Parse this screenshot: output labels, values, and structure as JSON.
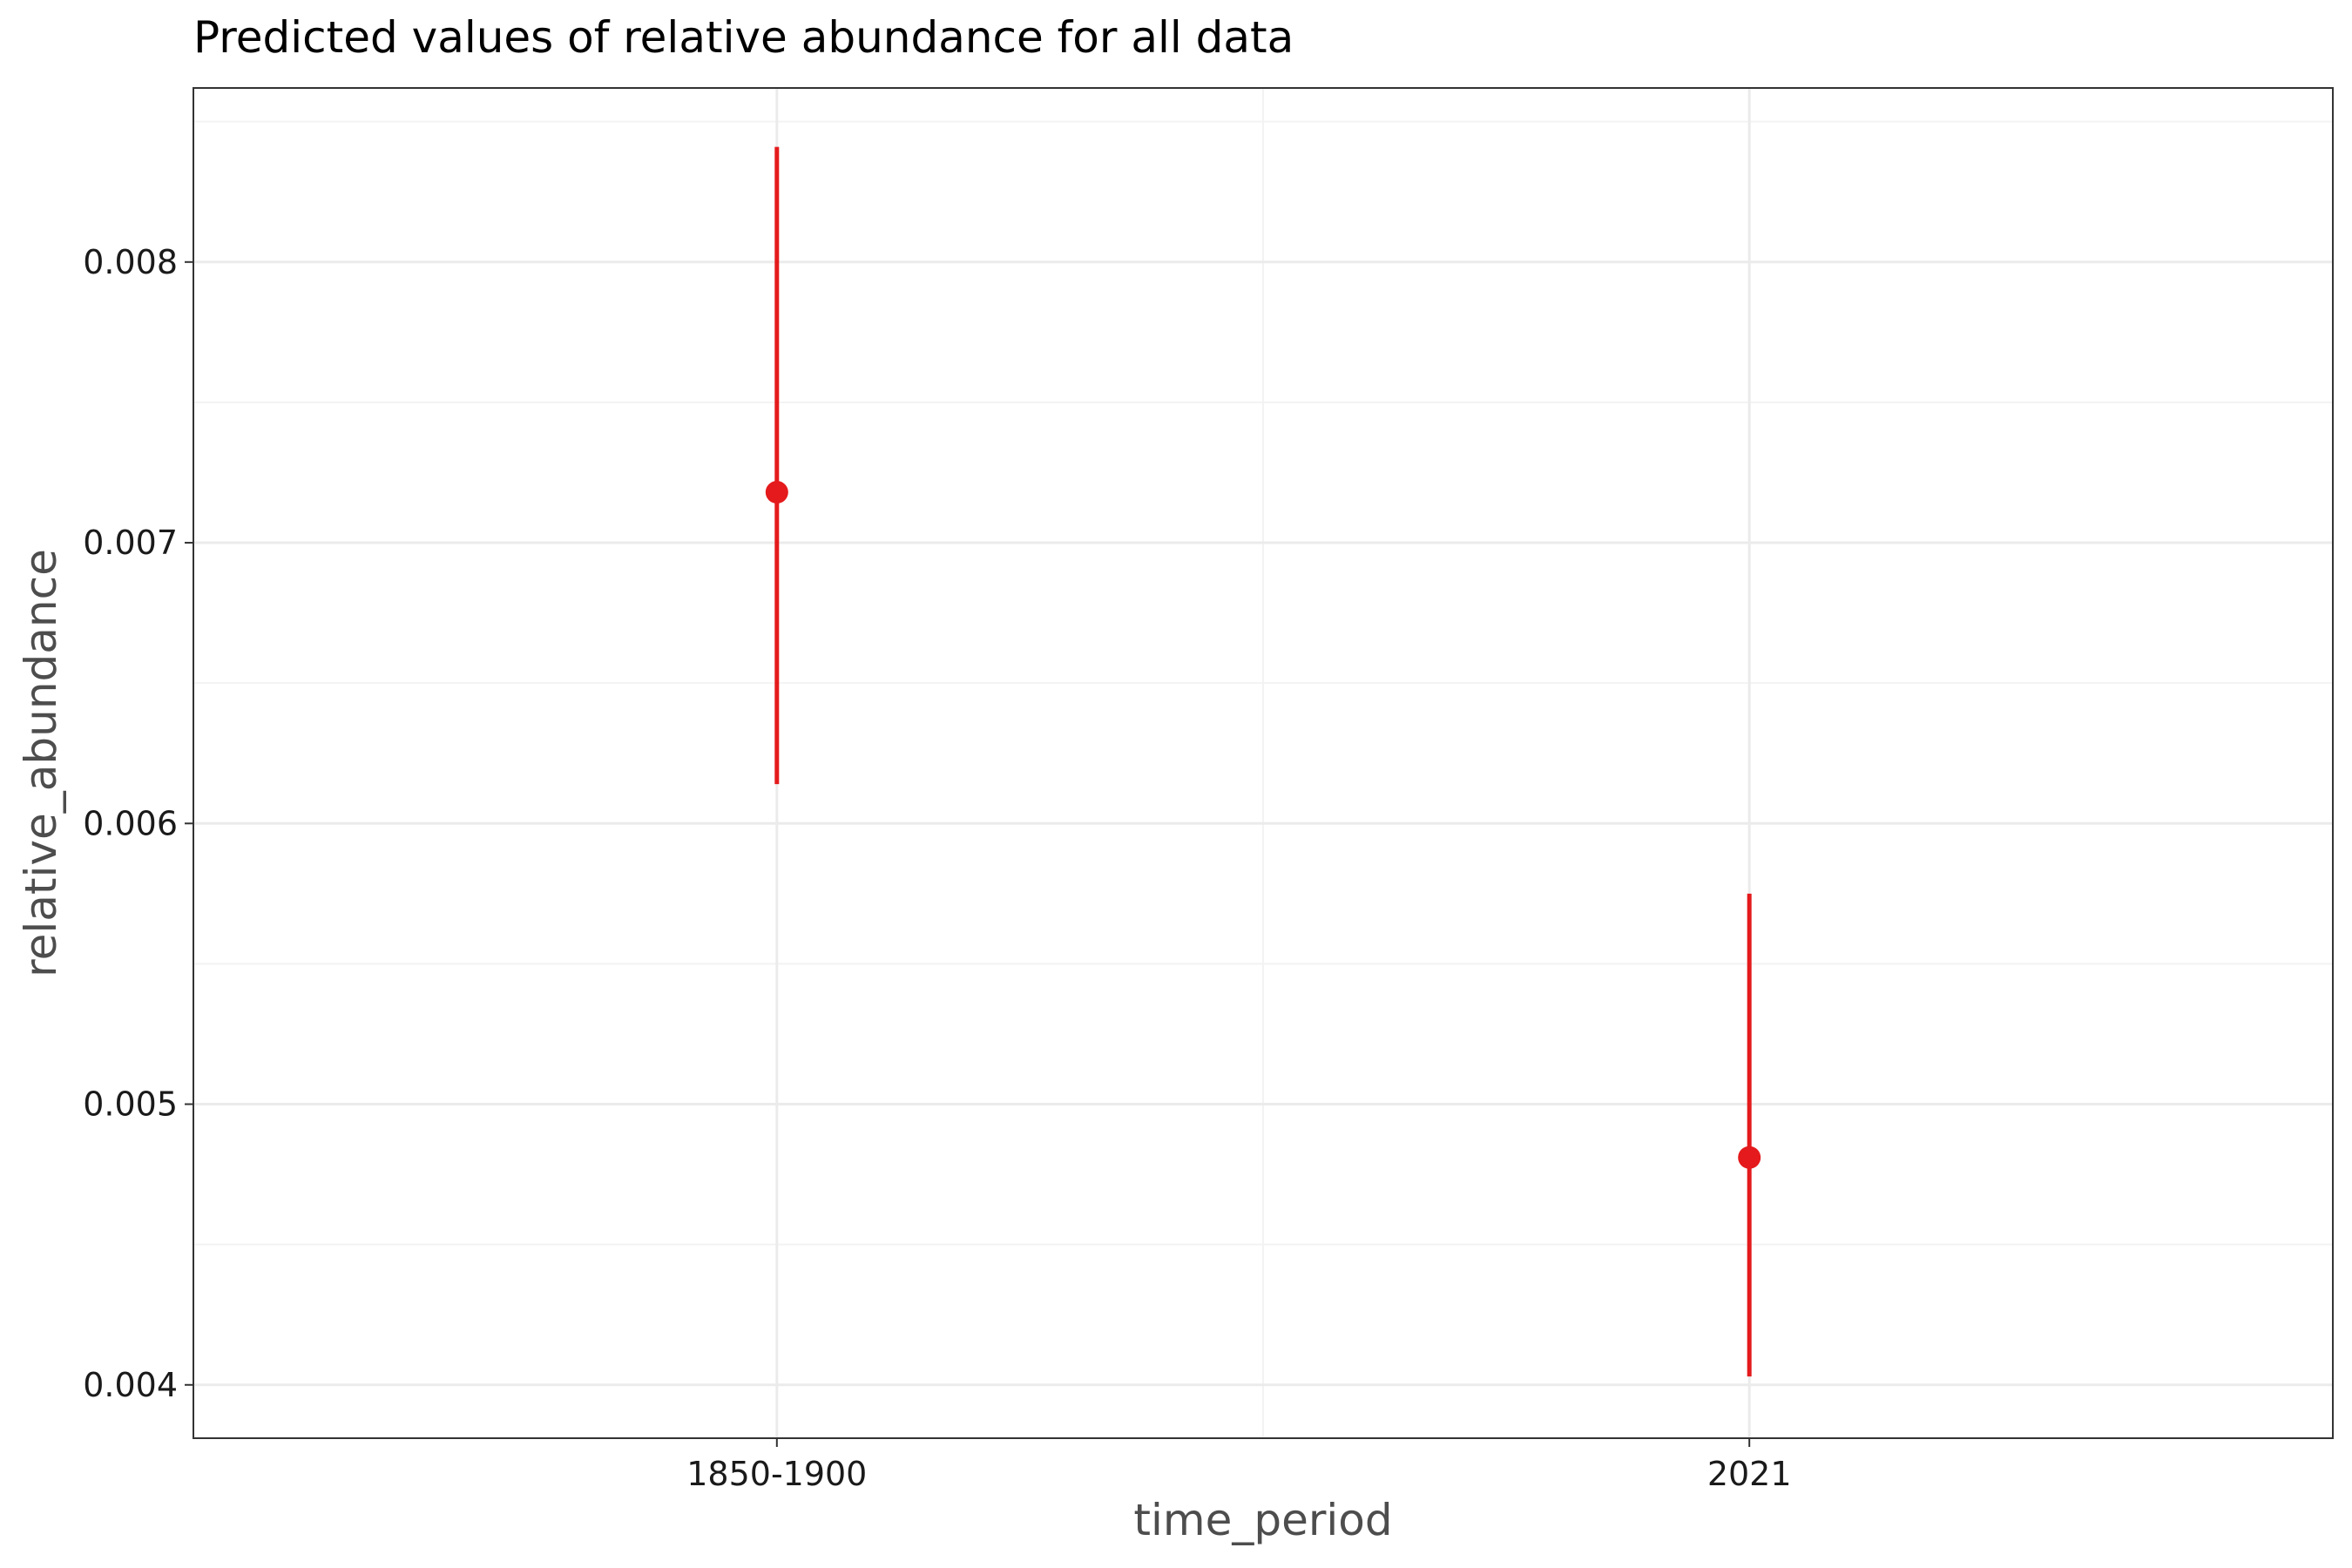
{
  "chart_data": {
    "type": "scatter",
    "title": "Predicted values of relative abundance for all data",
    "xlabel": "time_period",
    "ylabel": "relative_abundance",
    "categories": [
      "1850-1900",
      "2021"
    ],
    "series": [
      {
        "values": [
          0.00718,
          0.00481
        ],
        "ci_low": [
          0.00614,
          0.00403
        ],
        "ci_high": [
          0.00841,
          0.00575
        ],
        "color": "#e41a1c"
      }
    ],
    "ylim": [
      0.00381,
      0.00862
    ],
    "yticks": [
      "0.004",
      "0.005",
      "0.006",
      "0.007",
      "0.008"
    ],
    "ytick_values": [
      0.004,
      0.005,
      0.006,
      0.007,
      0.008
    ],
    "grid": true,
    "legend": "none"
  },
  "colors": {
    "series": "#e41a1c",
    "grid_major": "#ebebeb",
    "grid_minor": "#f3f3f3",
    "panel_border": "#333333"
  }
}
